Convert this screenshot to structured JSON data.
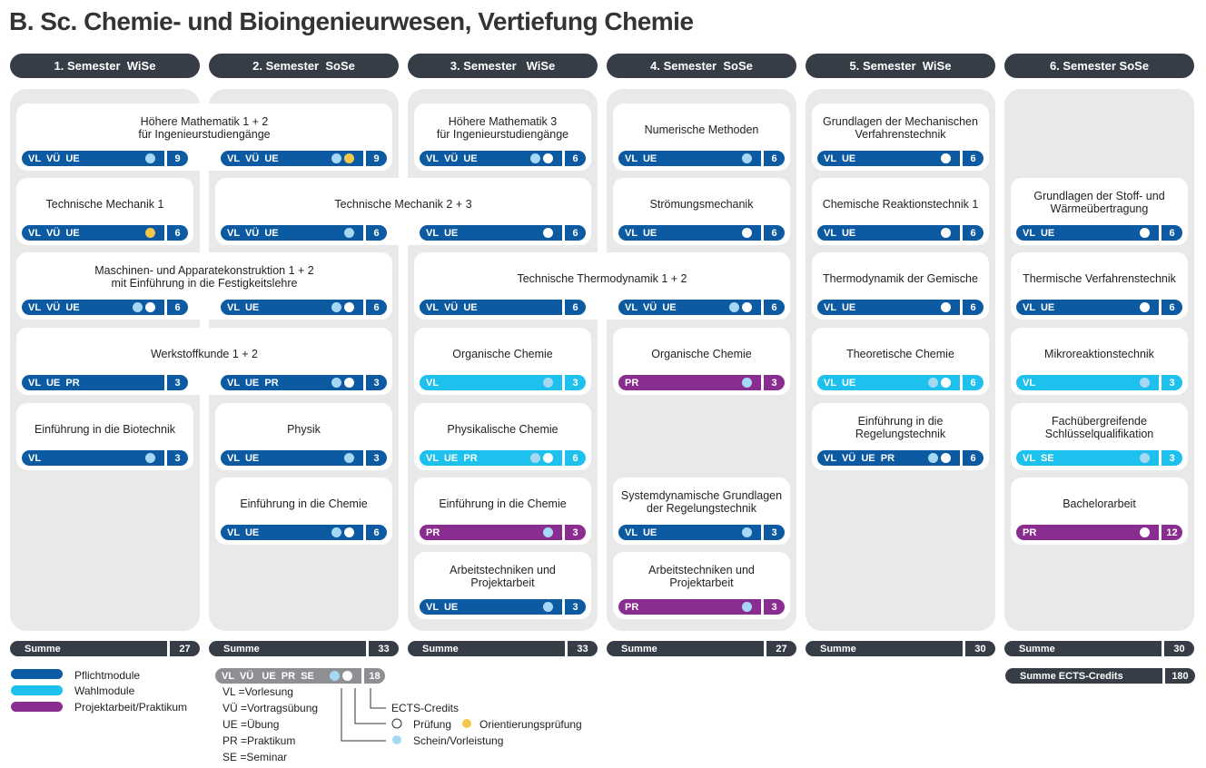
{
  "title": "B. Sc. Chemie- und Bioingenieurwesen, Vertiefung Chemie",
  "colors": {
    "pflicht": "#0b5aa2",
    "wahl": "#1ec1ee",
    "projekt": "#8a2d91",
    "dark": "#373d47"
  },
  "columns": [
    {
      "label": "1. Semester  WiSe",
      "sum_label": "Summe",
      "sum": "27"
    },
    {
      "label": "2. Semester  SoSe",
      "sum_label": "Summe",
      "sum": "33"
    },
    {
      "label": "3. Semester   WiSe",
      "sum_label": "Summe",
      "sum": "33"
    },
    {
      "label": "4. Semester  SoSe",
      "sum_label": "Summe",
      "sum": "27"
    },
    {
      "label": "5. Semester  WiSe",
      "sum_label": "Summe",
      "sum": "30"
    },
    {
      "label": "6. Semester SoSe",
      "sum_label": "Summe",
      "sum": "30"
    }
  ],
  "total": {
    "label": "Summe ECTS-Credits",
    "value": "180"
  },
  "modules": [
    {
      "title": "Höhere Mathematik 1 + 2\nfür Ingenieurstudiengänge",
      "bars": [
        {
          "col": 0,
          "label": "VL  VÜ  UE",
          "color": "blue",
          "dots": [
            "lb"
          ],
          "ects": "9"
        },
        {
          "col": 1,
          "label": "VL  VÜ  UE",
          "color": "blue",
          "dots": [
            "lb",
            "y"
          ],
          "ects": "9"
        }
      ]
    },
    {
      "title": "Technische Mechanik 1",
      "bars": [
        {
          "col": 0,
          "label": "VL  VÜ  UE",
          "color": "blue",
          "dots": [
            "y"
          ],
          "ects": "6"
        }
      ]
    },
    {
      "title": "Maschinen- und Apparatekonstruktion 1 + 2\nmit Einführung in die Festigkeitslehre",
      "bars": [
        {
          "col": 0,
          "label": "VL  VÜ  UE",
          "color": "blue",
          "dots": [
            "lb",
            "w"
          ],
          "ects": "6"
        },
        {
          "col": 1,
          "label": "VL  UE",
          "color": "blue",
          "dots": [
            "lb",
            "w"
          ],
          "ects": "6"
        }
      ]
    },
    {
      "title": "Werkstoffkunde 1 + 2",
      "bars": [
        {
          "col": 0,
          "label": "VL  UE  PR",
          "color": "blue",
          "dots": [],
          "ects": "3"
        },
        {
          "col": 1,
          "label": "VL  UE  PR",
          "color": "blue",
          "dots": [
            "lb",
            "w"
          ],
          "ects": "3"
        }
      ]
    },
    {
      "title": "Einführung in die Biotechnik",
      "bars": [
        {
          "col": 0,
          "label": "VL",
          "color": "blue",
          "dots": [
            "lb"
          ],
          "ects": "3"
        }
      ]
    },
    {
      "title": "Technische Mechanik 2 + 3",
      "bars": [
        {
          "col": 1,
          "label": "VL  VÜ  UE",
          "color": "blue",
          "dots": [
            "lb"
          ],
          "ects": "6"
        },
        {
          "col": 2,
          "label": "VL  UE",
          "color": "blue",
          "dots": [
            "w"
          ],
          "ects": "6"
        }
      ]
    },
    {
      "title": "Physik",
      "bars": [
        {
          "col": 1,
          "label": "VL  UE",
          "color": "blue",
          "dots": [
            "lb"
          ],
          "ects": "3"
        }
      ]
    },
    {
      "title": "Einführung in die Chemie",
      "bars": [
        {
          "col": 1,
          "label": "VL  UE",
          "color": "blue",
          "dots": [
            "lb",
            "w"
          ],
          "ects": "6"
        }
      ]
    },
    {
      "title": "Höhere Mathematik 3\nfür Ingenieurstudiengänge",
      "bars": [
        {
          "col": 2,
          "label": "VL  VÜ  UE",
          "color": "blue",
          "dots": [
            "lb",
            "w"
          ],
          "ects": "6"
        }
      ]
    },
    {
      "title": "Technische Thermodynamik 1 + 2",
      "bars": [
        {
          "col": 2,
          "label": "VL  VÜ  UE",
          "color": "blue",
          "dots": [],
          "ects": "6"
        },
        {
          "col": 3,
          "label": "VL  VÜ  UE",
          "color": "blue",
          "dots": [
            "lb",
            "w"
          ],
          "ects": "6"
        }
      ]
    },
    {
      "title": "Organische Chemie",
      "bars": [
        {
          "col": 2,
          "label": "VL",
          "color": "cyan",
          "dots": [
            "lb"
          ],
          "ects": "3"
        }
      ]
    },
    {
      "title": "Physikalische Chemie",
      "bars": [
        {
          "col": 2,
          "label": "VL  UE  PR",
          "color": "cyan",
          "dots": [
            "lb",
            "w"
          ],
          "ects": "6"
        }
      ]
    },
    {
      "title": "Einführung in die Chemie",
      "bars": [
        {
          "col": 2,
          "label": "PR",
          "color": "purple",
          "dots": [
            "lb"
          ],
          "ects": "3"
        }
      ]
    },
    {
      "title": "Arbeitstechniken und\nProjektarbeit",
      "bars": [
        {
          "col": 2,
          "label": "VL  UE",
          "color": "blue",
          "dots": [
            "lb"
          ],
          "ects": "3"
        }
      ]
    },
    {
      "title": "Numerische Methoden",
      "bars": [
        {
          "col": 3,
          "label": "VL  UE",
          "color": "blue",
          "dots": [
            "lb"
          ],
          "ects": "6"
        }
      ]
    },
    {
      "title": "Strömungsmechanik",
      "bars": [
        {
          "col": 3,
          "label": "VL  UE",
          "color": "blue",
          "dots": [
            "w"
          ],
          "ects": "6"
        }
      ]
    },
    {
      "title": "Organische Chemie",
      "bars": [
        {
          "col": 3,
          "label": "PR",
          "color": "purple",
          "dots": [
            "lb"
          ],
          "ects": "3"
        }
      ]
    },
    {
      "title": "Systemdynamische Grundlagen\nder Regelungstechnik",
      "bars": [
        {
          "col": 3,
          "label": "VL  UE",
          "color": "blue",
          "dots": [
            "lb"
          ],
          "ects": "3"
        }
      ]
    },
    {
      "title": "Arbeitstechniken und\nProjektarbeit",
      "bars": [
        {
          "col": 3,
          "label": "PR",
          "color": "purple",
          "dots": [
            "lb"
          ],
          "ects": "3"
        }
      ]
    },
    {
      "title": "Grundlagen der Mechanischen\nVerfahrenstechnik",
      "bars": [
        {
          "col": 4,
          "label": "VL  UE",
          "color": "blue",
          "dots": [
            "w"
          ],
          "ects": "6"
        }
      ]
    },
    {
      "title": "Chemische Reaktionstechnik 1",
      "bars": [
        {
          "col": 4,
          "label": "VL  UE",
          "color": "blue",
          "dots": [
            "w"
          ],
          "ects": "6"
        }
      ]
    },
    {
      "title": "Thermodynamik der Gemische",
      "bars": [
        {
          "col": 4,
          "label": "VL  UE",
          "color": "blue",
          "dots": [
            "w"
          ],
          "ects": "6"
        }
      ]
    },
    {
      "title": "Theoretische Chemie",
      "bars": [
        {
          "col": 4,
          "label": "VL  UE",
          "color": "cyan",
          "dots": [
            "lb",
            "w"
          ],
          "ects": "6"
        }
      ]
    },
    {
      "title": "Einführung in die\nRegelungstechnik",
      "bars": [
        {
          "col": 4,
          "label": "VL  VÜ  UE  PR",
          "color": "blue",
          "dots": [
            "lb",
            "w"
          ],
          "ects": "6"
        }
      ]
    },
    {
      "title": "Grundlagen der Stoff- und\nWärmeübertragung",
      "bars": [
        {
          "col": 5,
          "label": "VL  UE",
          "color": "blue",
          "dots": [
            "w"
          ],
          "ects": "6"
        }
      ]
    },
    {
      "title": "Thermische Verfahrenstechnik",
      "bars": [
        {
          "col": 5,
          "label": "VL  UE",
          "color": "blue",
          "dots": [
            "w"
          ],
          "ects": "6"
        }
      ]
    },
    {
      "title": "Mikroreaktionstechnik",
      "bars": [
        {
          "col": 5,
          "label": "VL",
          "color": "cyan",
          "dots": [
            "lb"
          ],
          "ects": "3"
        }
      ]
    },
    {
      "title": "Fachübergreifende\nSchlüsselqualifikation",
      "bars": [
        {
          "col": 5,
          "label": "VL  SE",
          "color": "cyan",
          "dots": [
            "lb"
          ],
          "ects": "3"
        }
      ]
    },
    {
      "title": "Bachelorarbeit",
      "bars": [
        {
          "col": 5,
          "label": "PR",
          "color": "purple",
          "dots": [
            "w"
          ],
          "ects": "12"
        }
      ]
    }
  ],
  "legend": {
    "types": [
      {
        "label": "Pflichtmodule",
        "color": "#0b5aa2"
      },
      {
        "label": "Wahlmodule",
        "color": "#1ec1ee"
      },
      {
        "label": "Projektarbeit/Praktikum",
        "color": "#8a2d91"
      }
    ],
    "sample_bar": {
      "label": "VL  VÜ   UE  PR  SE",
      "ects": "18"
    },
    "abbreviations": [
      "VL =Vorlesung",
      "VÜ =Vortragsübung",
      "UE =Übung",
      "PR =Praktikum",
      "SE =Seminar"
    ],
    "ects_label": "ECTS-Credits",
    "pruefung": "Prüfung",
    "orientierung": "Orientierungsprüfung",
    "schein": "Schein/Vorleistung"
  }
}
